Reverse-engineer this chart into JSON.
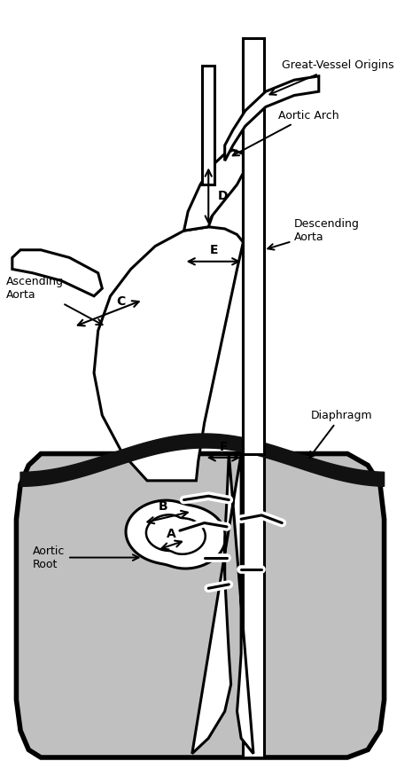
{
  "bg_color": "#ffffff",
  "line_color": "#000000",
  "lw": 2.2,
  "lw_thick": 4.0,
  "fig_width": 4.74,
  "fig_height": 8.67,
  "labels": {
    "great_vessel": "Great-Vessel Origins",
    "aortic_arch": "Aortic Arch",
    "ascending": "Ascending\nAorta",
    "descending": "Descending\nAorta",
    "aortic_root": "Aortic\nRoot",
    "diaphragm": "Diaphragm",
    "A": "A",
    "B": "B",
    "C": "C",
    "D": "D",
    "E": "E",
    "F": "F"
  },
  "abdominal_fill": "#c0c0c0",
  "diaphragm_fill": "#111111",
  "label_fontsize": 9,
  "seg_fontsize": 10
}
